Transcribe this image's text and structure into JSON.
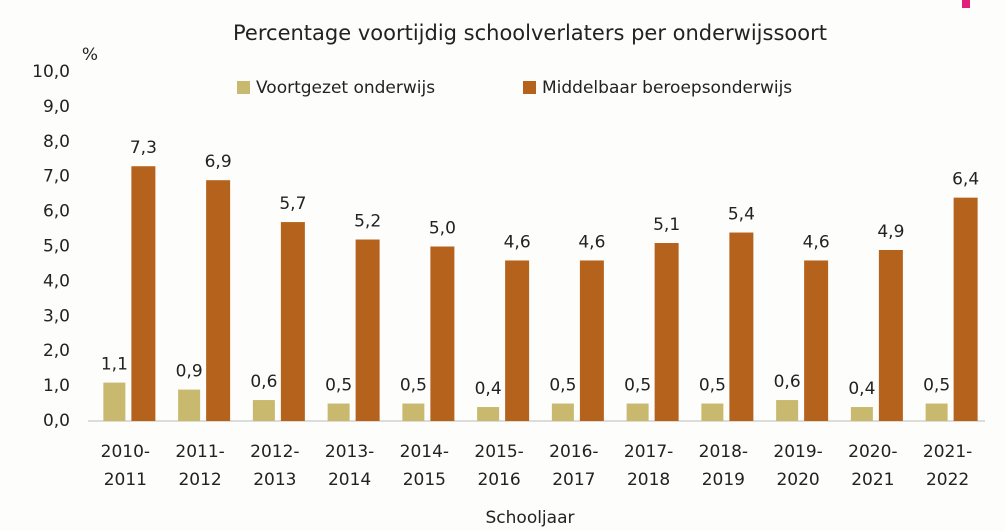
{
  "chart_data": {
    "type": "bar",
    "title": "Percentage voortijdig schoolverlaters per onderwijssoort",
    "y_label": "%",
    "x_label": "Schooljaar",
    "categories": [
      "2010-2011",
      "2011-2012",
      "2012-2013",
      "2013-2014",
      "2014-2015",
      "2015-2016",
      "2016-2017",
      "2017-2018",
      "2018-2019",
      "2019-2020",
      "2020-2021",
      "2021-2022"
    ],
    "series": [
      {
        "name": "Voortgezet onderwijs",
        "color": "#c8b96e",
        "values": [
          1.1,
          0.9,
          0.6,
          0.5,
          0.5,
          0.4,
          0.5,
          0.5,
          0.5,
          0.6,
          0.4,
          0.5
        ],
        "value_labels": [
          "1,1",
          "0,9",
          "0,6",
          "0,5",
          "0,5",
          "0,4",
          "0,5",
          "0,5",
          "0,5",
          "0,6",
          "0,4",
          "0,5"
        ]
      },
      {
        "name": "Middelbaar beroepsonderwijs",
        "color": "#b5631c",
        "values": [
          7.3,
          6.9,
          5.7,
          5.2,
          5.0,
          4.6,
          4.6,
          5.1,
          5.4,
          4.6,
          4.9,
          6.4
        ],
        "value_labels": [
          "7,3",
          "6,9",
          "5,7",
          "5,2",
          "5,0",
          "4,6",
          "4,6",
          "5,1",
          "5,4",
          "4,6",
          "4,9",
          "6,4"
        ]
      }
    ],
    "ylim": [
      0,
      10
    ],
    "yticks": [
      {
        "value": 0,
        "label": "0,0"
      },
      {
        "value": 1,
        "label": "1,0"
      },
      {
        "value": 2,
        "label": "2,0"
      },
      {
        "value": 3,
        "label": "3,0"
      },
      {
        "value": 4,
        "label": "4,0"
      },
      {
        "value": 5,
        "label": "5,0"
      },
      {
        "value": 6,
        "label": "6,0"
      },
      {
        "value": 7,
        "label": "7,0"
      },
      {
        "value": 8,
        "label": "8,0"
      },
      {
        "value": 9,
        "label": "9,0"
      },
      {
        "value": 10,
        "label": "10,0"
      }
    ],
    "grid": false,
    "legend": "top"
  }
}
